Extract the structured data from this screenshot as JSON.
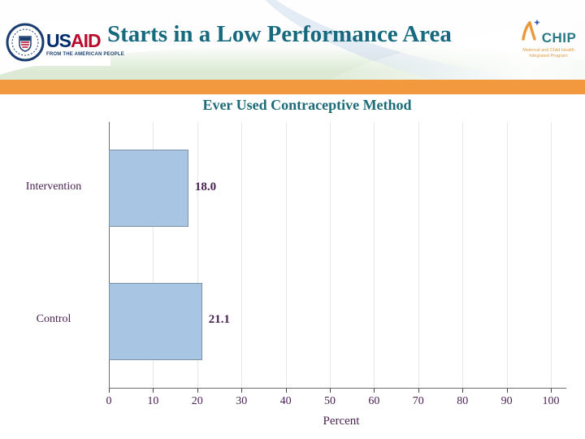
{
  "slide_title": "Starts in a Low Performance Area",
  "header": {
    "usaid_logo": {
      "us": "US",
      "aid": "AID",
      "tagline": "FROM THE AMERICAN PEOPLE"
    },
    "mchip_logo": {
      "name": "CHIP",
      "tagline_line1": "Maternal and Child Health",
      "tagline_line2": "Integrated Program"
    }
  },
  "chart_data": {
    "type": "bar",
    "orientation": "horizontal",
    "title": "Ever Used Contraceptive Method",
    "categories": [
      "Intervention",
      "Control"
    ],
    "values": [
      18.0,
      21.1
    ],
    "value_labels": [
      "18.0",
      "21.1"
    ],
    "xlabel": "Percent",
    "xlim": [
      0,
      100
    ],
    "xticks": [
      0,
      10,
      20,
      30,
      40,
      50,
      60,
      70,
      80,
      90,
      100
    ],
    "grid": true,
    "legend": false,
    "bar_color": "#a9c5e4",
    "bar_border_color": "#7e92a8",
    "text_color": "#4a2153",
    "title_color": "#1c6b77"
  },
  "colors": {
    "divider_orange": "#f2993f",
    "slide_title_teal": "#17697e"
  }
}
